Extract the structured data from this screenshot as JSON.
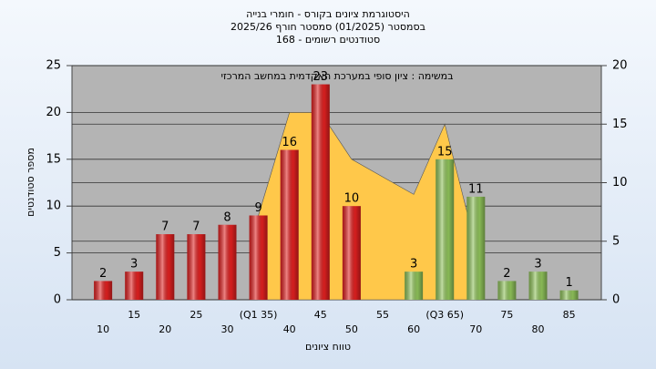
{
  "chart_data": {
    "type": "bar",
    "title": "היסטוגרמת ציונים בקורס - חומרי בנייה",
    "subtitle": "בסמסטר  (01/2025)  סמסטר חורף 2025/26",
    "subtitle2": "סטודנטים רשומים - 168",
    "annotation": "במשימה : ציון סופי במערכת האקדמית במחשב המרכזי",
    "y_label": "מספר סטודנטים",
    "x_label": "טווח ציונים",
    "categories": [
      "10",
      "15",
      "20",
      "25",
      "30",
      "(Q1 35)",
      "40",
      "45",
      "50",
      "55",
      "60",
      "(Q3 65)",
      "70",
      "75",
      "80",
      "85"
    ],
    "values": [
      2,
      3,
      7,
      7,
      8,
      9,
      16,
      23,
      10,
      null,
      3,
      15,
      11,
      2,
      3,
      1
    ],
    "colors": [
      "#e02020",
      "#e02020",
      "#e02020",
      "#e02020",
      "#e02020",
      "#e02020",
      "#e02020",
      "#e02020",
      "#e02020",
      "#e02020",
      "#8fc25a",
      "#8fc25a",
      "#8fc25a",
      "#8fc25a",
      "#8fc25a",
      "#8fc25a"
    ],
    "area": {
      "color": "#ffc84a",
      "axis": "y2",
      "values": [
        null,
        null,
        null,
        null,
        null,
        7.2,
        16,
        16,
        12,
        10.5,
        9,
        15,
        4.5,
        null,
        null,
        null
      ]
    },
    "ylim": [
      0,
      25
    ],
    "yticks": [
      0,
      5,
      10,
      15,
      20,
      25
    ],
    "y2lim": [
      0,
      20
    ],
    "y2ticks": [
      0,
      5,
      10,
      15,
      20
    ],
    "grid": true
  }
}
